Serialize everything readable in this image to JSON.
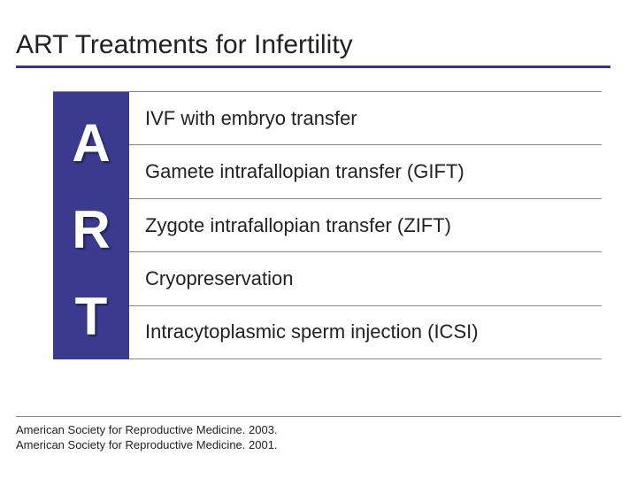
{
  "title": "ART Treatments for Infertility",
  "letter_column": {
    "background_color": "#3a3b8f",
    "letters": [
      "A",
      "R",
      "T"
    ],
    "letter_color": "#ffffff",
    "letter_fontsize": 60
  },
  "treatments": [
    "IVF with embryo transfer",
    "Gamete intrafallopian transfer (GIFT)",
    "Zygote intrafallopian transfer (ZIFT)",
    "Cryopreservation",
    "Intracytoplasmic sperm injection (ICSI)"
  ],
  "citations": [
    "American Society for Reproductive Medicine. 2003.",
    "American Society for Reproductive Medicine. 2001."
  ],
  "styling": {
    "title_fontsize": 30,
    "title_underline_color": "#3e357f",
    "row_fontsize": 22,
    "row_border_color": "#888888",
    "citation_fontsize": 13,
    "background_color": "#ffffff",
    "text_color": "#222222"
  }
}
